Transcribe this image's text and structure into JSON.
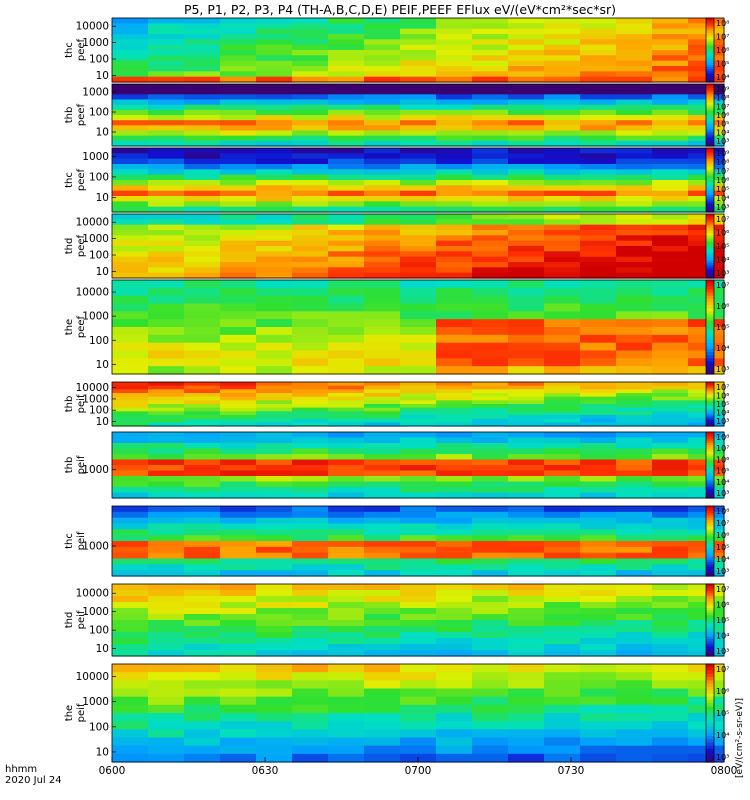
{
  "title": "P5, P1, P2, P3, P4 (TH-A,B,C,D,E) PEIF,PEEF EFlux eV/(eV*cm²*sec*sr)",
  "colorbar_label": "[eV/(cm²-s-sr-eV)]",
  "footer": {
    "time_format": "hhmm",
    "date": "2020 Jul 24"
  },
  "chart_data": {
    "type": "heatmap",
    "x_ticks": [
      "0600",
      "0630",
      "0700",
      "0730",
      "0800"
    ],
    "xlim": [
      "0600",
      "0800"
    ],
    "x_range_minutes": [
      360,
      480
    ],
    "time_bins": 17,
    "colormap": "rainbow (purple-blue-cyan-green-yellow-orange-red)",
    "panels": [
      {
        "probe": "thc",
        "product": "peef",
        "y_ticks": [
          "10000",
          "1000",
          "100",
          "10"
        ],
        "ylim_log10": [
          0.6,
          4.5
        ],
        "cbar_ticks": [
          "10⁸",
          "10⁷",
          "10⁶",
          "10⁵",
          "10⁴"
        ],
        "cbar_log10": [
          4,
          8
        ]
      },
      {
        "probe": "thb",
        "product": "peef",
        "y_ticks": [
          "1000",
          "100",
          "10"
        ],
        "ylim_log10": [
          0.3,
          3.4
        ],
        "cbar_ticks": [
          "10⁹",
          "10⁸",
          "10⁷",
          "10⁶",
          "10⁵",
          "10⁴",
          "10³"
        ],
        "cbar_log10": [
          3,
          9
        ]
      },
      {
        "probe": "thc",
        "product": "peef",
        "y_ticks": [
          "1000",
          "100",
          "10"
        ],
        "ylim_log10": [
          0.3,
          3.4
        ],
        "cbar_ticks": [
          "10⁹",
          "10⁸",
          "10⁷",
          "10⁶",
          "10⁵",
          "10⁴",
          "10³"
        ],
        "cbar_log10": [
          3,
          9
        ]
      },
      {
        "probe": "thd",
        "product": "peef",
        "y_ticks": [
          "10000",
          "1000",
          "100",
          "10"
        ],
        "ylim_log10": [
          0.6,
          4.5
        ],
        "cbar_ticks": [
          "10⁷",
          "10⁶",
          "10⁵",
          "10⁴",
          "10³"
        ],
        "cbar_log10": [
          3,
          7
        ]
      },
      {
        "probe": "the",
        "product": "peef",
        "y_ticks": [
          "10000",
          "1000",
          "100",
          "10"
        ],
        "ylim_log10": [
          0.6,
          4.5
        ],
        "cbar_ticks": [
          "10⁷",
          "10⁶",
          "10⁵",
          "10⁴",
          "10³"
        ],
        "cbar_log10": [
          3,
          7
        ]
      },
      {
        "probe": "thb",
        "product": "peif",
        "y_ticks": [
          "10000",
          "1000",
          "100",
          "10"
        ],
        "ylim_log10": [
          0.6,
          4.5
        ],
        "cbar_ticks": [
          "10⁷",
          "10⁶",
          "10⁵",
          "10⁴",
          "10³"
        ],
        "cbar_log10": [
          3,
          7
        ]
      },
      {
        "probe": "thb",
        "product": "peif",
        "y_ticks": [
          "1000"
        ],
        "ylim_log10": [
          1.8,
          4.6
        ],
        "cbar_ticks": [
          "10⁸",
          "10⁷",
          "10⁶",
          "10⁵",
          "10⁴",
          "10³"
        ],
        "cbar_log10": [
          3,
          8
        ]
      },
      {
        "probe": "thc",
        "product": "peif",
        "y_ticks": [
          "1000"
        ],
        "ylim_log10": [
          1.8,
          4.6
        ],
        "cbar_ticks": [
          "10⁸",
          "10⁷",
          "10⁶",
          "10⁵",
          "10⁴",
          "10³"
        ],
        "cbar_log10": [
          3,
          8
        ]
      },
      {
        "probe": "thd",
        "product": "peif",
        "y_ticks": [
          "10000",
          "1000",
          "100",
          "10"
        ],
        "ylim_log10": [
          0.6,
          4.5
        ],
        "cbar_ticks": [
          "10⁷",
          "10⁶",
          "10⁵",
          "10⁴",
          "10³"
        ],
        "cbar_log10": [
          3,
          7
        ]
      },
      {
        "probe": "the",
        "product": "peif",
        "y_ticks": [
          "10000",
          "1000",
          "100",
          "10"
        ],
        "ylim_log10": [
          0.6,
          4.5
        ],
        "cbar_ticks": [
          "10⁷",
          "10⁶",
          "10⁵",
          "10⁴",
          "10³"
        ],
        "cbar_log10": [
          3,
          7
        ]
      }
    ]
  }
}
